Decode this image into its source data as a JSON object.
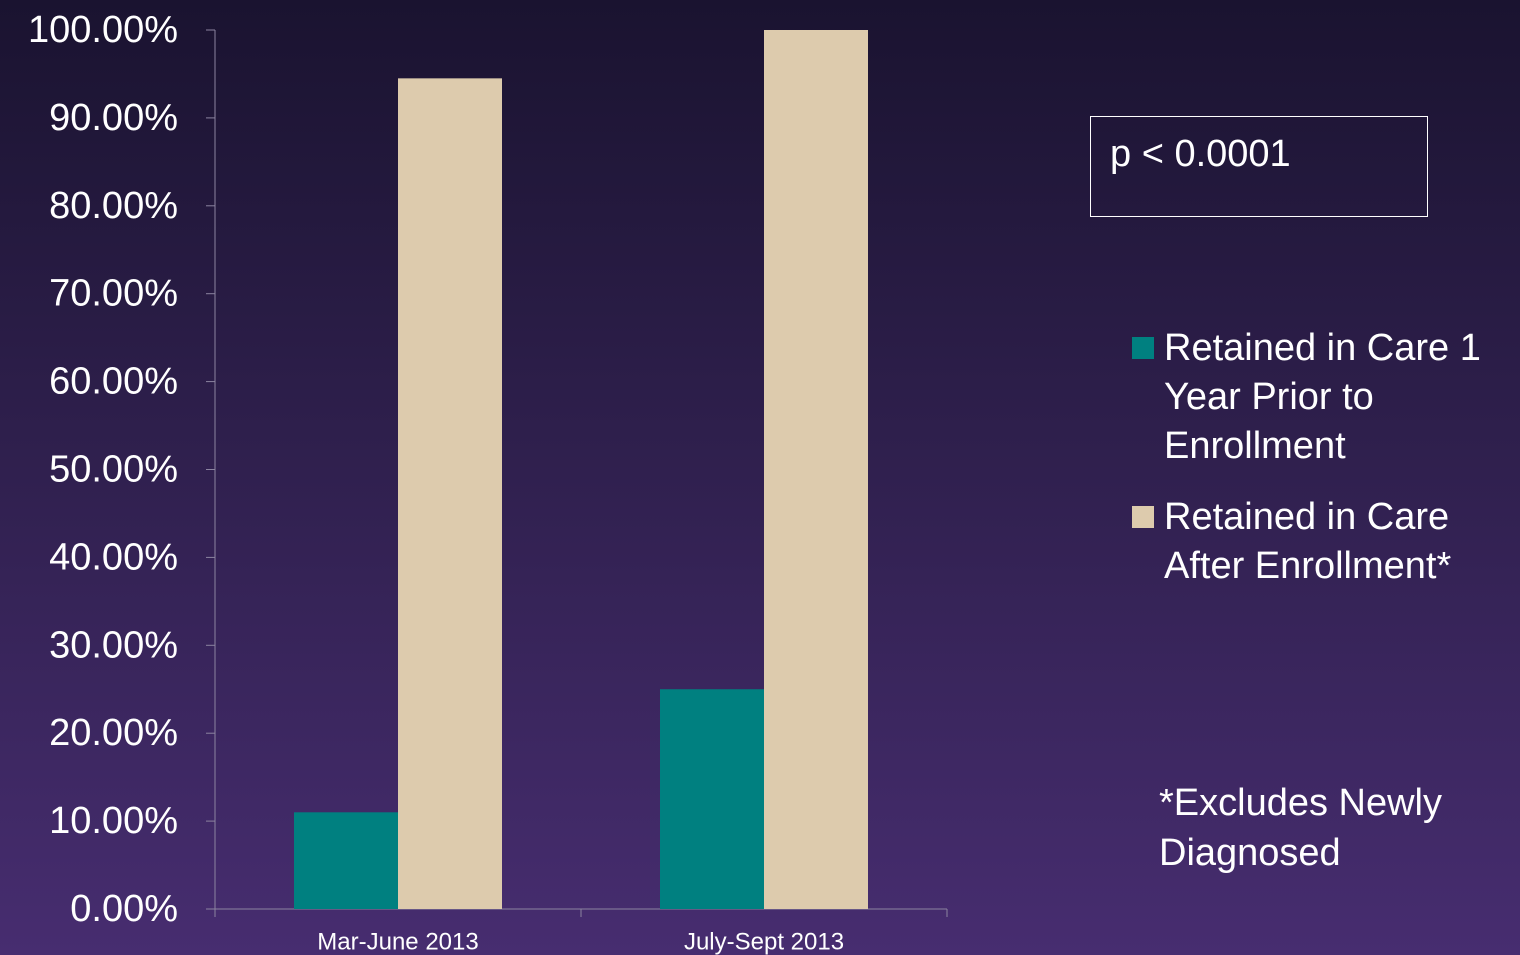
{
  "chart_data": {
    "type": "bar",
    "categories": [
      "Mar-June 2013",
      "July-Sept 2013"
    ],
    "series": [
      {
        "name": "Retained in Care 1 Year Prior to Enrollment",
        "color": "#008080",
        "values": [
          0.11,
          0.25
        ]
      },
      {
        "name": "Retained in Care After Enrollment*",
        "color": "#ddcbad",
        "values": [
          0.945,
          1.0
        ]
      }
    ],
    "ylim": [
      0,
      1
    ],
    "yticks": [
      0,
      0.1,
      0.2,
      0.3,
      0.4,
      0.5,
      0.6,
      0.7,
      0.8,
      0.9,
      1.0
    ],
    "ytick_labels": [
      "0.00%",
      "10.00%",
      "20.00%",
      "30.00%",
      "40.00%",
      "50.00%",
      "60.00%",
      "70.00%",
      "80.00%",
      "90.00%",
      "100.00%"
    ],
    "title": "",
    "xlabel": "",
    "ylabel": "",
    "grid": false,
    "legend_position": "right",
    "axis_color": "#8c84a0"
  },
  "annotations": {
    "p_value": "p < 0.0001",
    "footnote": "*Excludes Newly Diagnosed"
  },
  "colors": {
    "background_top": "#1a1330",
    "background_bottom": "#472d70",
    "text": "#ffffff"
  }
}
